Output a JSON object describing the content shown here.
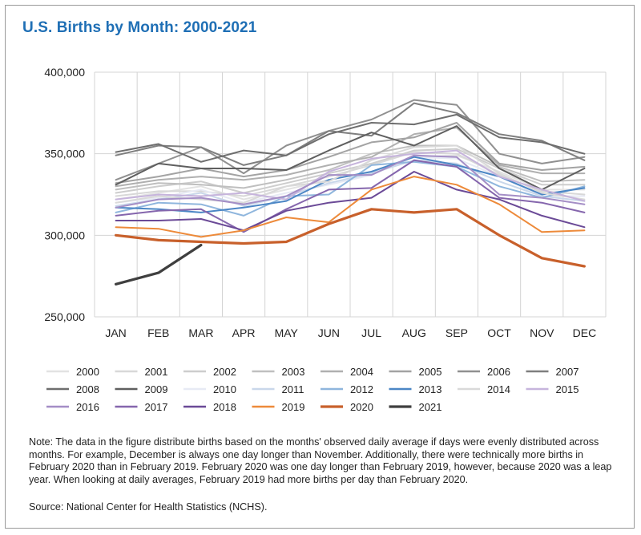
{
  "title": "U.S. Births by Month: 2000-2021",
  "note": "Note: The data in the figure distribute births based on the months' observed daily average if days were evenly distributed across months.  For example, December is always one day longer than November. Additionally, there were technically more births in February 2020 than in February 2019. February 2020 was one day longer than February 2019, however, because 2020 was a leap year. When looking at daily averages, February 2019 had more births per day than February 2020.",
  "source": "Source: National Center for Health Statistics (NCHS).",
  "chart_data": {
    "type": "line",
    "title": "U.S. Births by Month: 2000-2021",
    "xlabel": "",
    "ylabel": "",
    "categories": [
      "JAN",
      "FEB",
      "MAR",
      "APR",
      "MAY",
      "JUN",
      "JUL",
      "AUG",
      "SEP",
      "OCT",
      "NOV",
      "DEC"
    ],
    "ylim": [
      250000,
      400000
    ],
    "yticks": [
      250000,
      300000,
      350000,
      400000
    ],
    "ytick_labels": [
      "250,000",
      "300,000",
      "350,000",
      "400,000"
    ],
    "grid": "vertical category lines",
    "legend": "bottom",
    "series": [
      {
        "name": "2000",
        "color": "#e2e2e2",
        "width": 2,
        "values": [
          322000,
          326000,
          330000,
          322000,
          328000,
          334000,
          339000,
          348000,
          349000,
          339000,
          328000,
          328000
        ]
      },
      {
        "name": "2001",
        "color": "#d8d8d8",
        "width": 2,
        "values": [
          324000,
          327000,
          327000,
          324000,
          330000,
          336000,
          343000,
          351000,
          350000,
          337000,
          327000,
          325000
        ]
      },
      {
        "name": "2002",
        "color": "#cdcdcd",
        "width": 2,
        "values": [
          326000,
          330000,
          333000,
          326000,
          332000,
          338000,
          344000,
          352000,
          353000,
          341000,
          331000,
          331000
        ]
      },
      {
        "name": "2003",
        "color": "#bfbfbf",
        "width": 2,
        "values": [
          328000,
          332000,
          331000,
          329000,
          334000,
          340000,
          350000,
          355000,
          355000,
          342000,
          333000,
          334000
        ]
      },
      {
        "name": "2004",
        "color": "#b0b0b0",
        "width": 2,
        "values": [
          330000,
          334000,
          336000,
          334000,
          337000,
          343000,
          348000,
          362000,
          366000,
          343000,
          338000,
          338000
        ]
      },
      {
        "name": "2005",
        "color": "#a3a3a3",
        "width": 2,
        "values": [
          332000,
          336000,
          341000,
          336000,
          340000,
          348000,
          357000,
          360000,
          369000,
          344000,
          340000,
          342000
        ]
      },
      {
        "name": "2006",
        "color": "#909090",
        "width": 2,
        "values": [
          334000,
          344000,
          354000,
          338000,
          355000,
          364000,
          371000,
          383000,
          380000,
          350000,
          344000,
          348000
        ]
      },
      {
        "name": "2007",
        "color": "#7f7f7f",
        "width": 2,
        "values": [
          349000,
          355000,
          354000,
          343000,
          349000,
          364000,
          361000,
          381000,
          375000,
          362000,
          358000,
          346000
        ]
      },
      {
        "name": "2008",
        "color": "#6e6e6e",
        "width": 2,
        "values": [
          351000,
          356000,
          345000,
          352000,
          349000,
          362000,
          369000,
          368000,
          374000,
          360000,
          357000,
          350000
        ]
      },
      {
        "name": "2009",
        "color": "#5f5f5f",
        "width": 2,
        "values": [
          331000,
          344000,
          341000,
          341000,
          340000,
          352000,
          363000,
          355000,
          367000,
          341000,
          328000,
          341000
        ]
      },
      {
        "name": "2010",
        "color": "#e7eaf4",
        "width": 2,
        "values": [
          320000,
          323000,
          328000,
          320000,
          326000,
          331000,
          337000,
          348000,
          347000,
          336000,
          324000,
          324000
        ]
      },
      {
        "name": "2011",
        "color": "#c9d7ea",
        "width": 2,
        "values": [
          318000,
          322000,
          326000,
          318000,
          324000,
          332000,
          338000,
          346000,
          344000,
          333000,
          324000,
          321000
        ]
      },
      {
        "name": "2012",
        "color": "#8fb6dd",
        "width": 2,
        "values": [
          314000,
          320000,
          319000,
          312000,
          324000,
          325000,
          343000,
          345000,
          342000,
          330000,
          323000,
          330000
        ]
      },
      {
        "name": "2013",
        "color": "#4b86c5",
        "width": 2,
        "values": [
          317000,
          316000,
          314000,
          317000,
          321000,
          334000,
          339000,
          348000,
          343000,
          336000,
          325000,
          329000
        ]
      },
      {
        "name": "2014",
        "color": "#d9d9d9",
        "width": 2,
        "values": [
          320000,
          324000,
          322000,
          320000,
          330000,
          333000,
          346000,
          354000,
          355000,
          338000,
          326000,
          322000
        ]
      },
      {
        "name": "2015",
        "color": "#c6b4dc",
        "width": 2,
        "values": [
          322000,
          325000,
          324000,
          326000,
          322000,
          339000,
          347000,
          350000,
          352000,
          336000,
          328000,
          321000
        ]
      },
      {
        "name": "2016",
        "color": "#a48ec6",
        "width": 2,
        "values": [
          317000,
          322000,
          323000,
          319000,
          324000,
          337000,
          337000,
          349000,
          348000,
          325000,
          323000,
          319000
        ]
      },
      {
        "name": "2017",
        "color": "#8566ad",
        "width": 2,
        "values": [
          312000,
          315000,
          316000,
          302000,
          316000,
          328000,
          329000,
          346000,
          342000,
          323000,
          320000,
          314000
        ]
      },
      {
        "name": "2018",
        "color": "#6b4a97",
        "width": 2,
        "values": [
          309000,
          309000,
          310000,
          303000,
          315000,
          320000,
          323000,
          339000,
          328000,
          322000,
          312000,
          305000
        ]
      },
      {
        "name": "2019",
        "color": "#ed8a3a",
        "width": 2,
        "values": [
          305000,
          304000,
          299000,
          303000,
          311000,
          308000,
          328000,
          336000,
          331000,
          319000,
          302000,
          303000
        ]
      },
      {
        "name": "2020",
        "color": "#c8602b",
        "width": 3.2,
        "values": [
          300000,
          297000,
          296000,
          295000,
          296000,
          307000,
          316000,
          314000,
          316000,
          300000,
          286000,
          281000
        ]
      },
      {
        "name": "2021",
        "color": "#3f3f3f",
        "width": 3.2,
        "values": [
          270000,
          277000,
          294000,
          null,
          null,
          null,
          null,
          null,
          null,
          null,
          null,
          null
        ]
      }
    ]
  }
}
